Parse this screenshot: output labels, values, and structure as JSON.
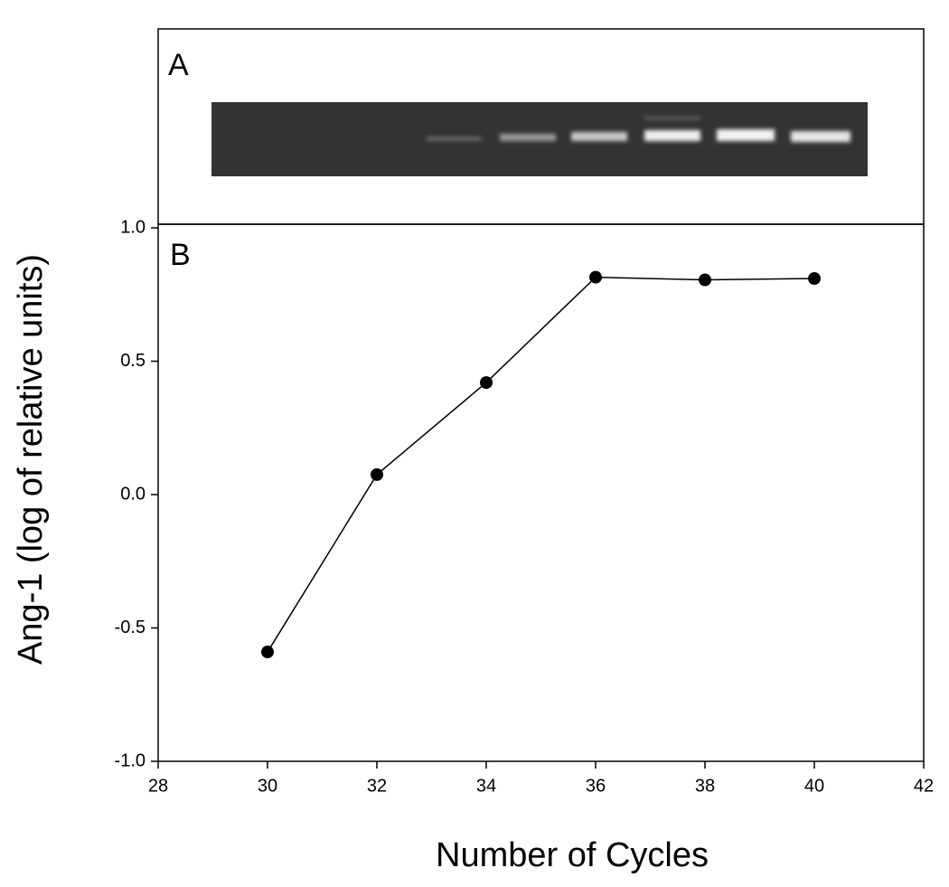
{
  "chart_data": {
    "type": "line",
    "panel_labels": [
      "A",
      "B"
    ],
    "x_label": "Number of Cycles",
    "y_label": "Ang-1 (log of relative units)",
    "x": [
      30,
      32,
      34,
      36,
      38,
      40
    ],
    "series": [
      {
        "color": "#000000",
        "values": [
          -0.59,
          0.075,
          0.42,
          0.815,
          0.805,
          0.81
        ]
      }
    ],
    "xlim": [
      28,
      42
    ],
    "xticks": [
      28,
      30,
      32,
      34,
      36,
      38,
      40,
      42
    ],
    "ylim": [
      -1,
      1
    ],
    "yticks": [
      {
        "value": -1,
        "label": "-1.0"
      },
      -0.5,
      {
        "value": 0,
        "label": "0.0"
      },
      0.5,
      {
        "value": 1,
        "label": "1.0"
      }
    ],
    "grid": false
  }
}
